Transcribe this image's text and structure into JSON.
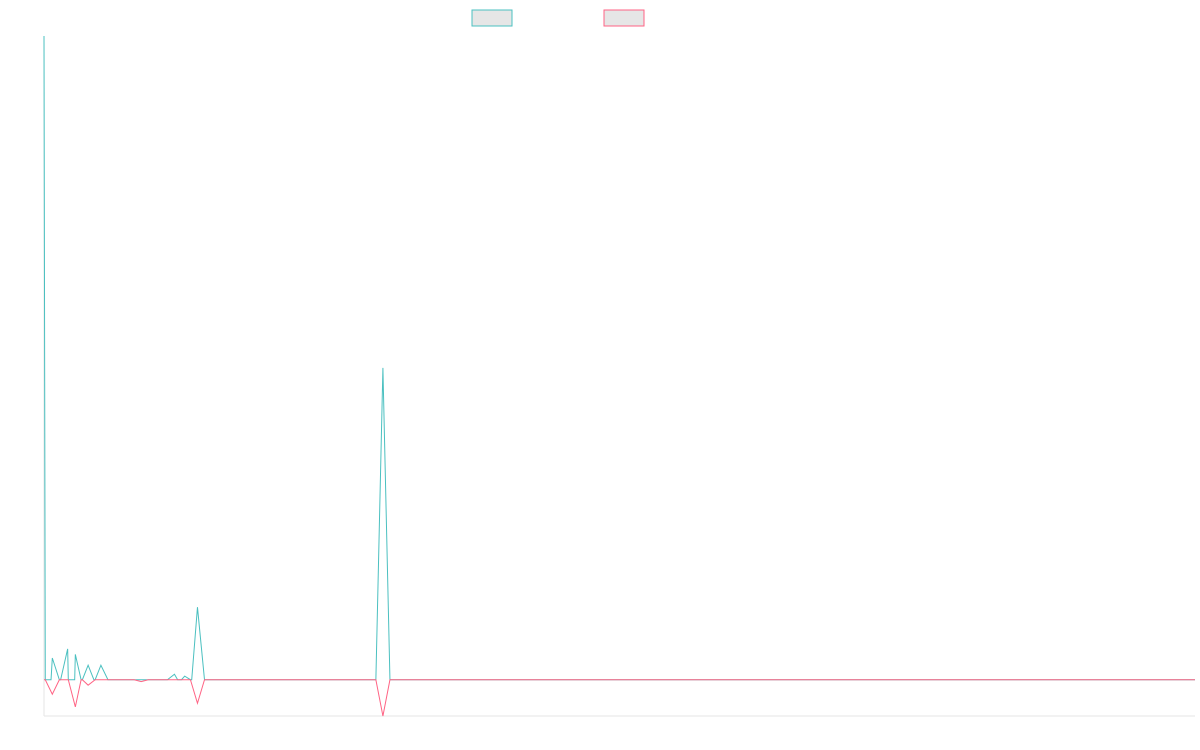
{
  "colors": {
    "series_a": "#4bc0c0",
    "series_b": "#ff6384",
    "legend_fill": "#e6e6e6",
    "axis": "#e6e6e6"
  },
  "chart_data": {
    "type": "line",
    "title": "",
    "xlabel": "",
    "ylabel": "",
    "grid": false,
    "legend": "top-center",
    "x_count": 90,
    "ylim": [
      -20,
      355
    ],
    "series": [
      {
        "color": "#4bc0c0",
        "points": [
          [
            0,
            355
          ],
          [
            0.65,
            12
          ],
          [
            1.85,
            17
          ],
          [
            2.45,
            14
          ],
          [
            3.45,
            8
          ],
          [
            4.45,
            8
          ],
          [
            10.2,
            3
          ],
          [
            11,
            2
          ],
          [
            12,
            40
          ],
          [
            26.5,
            172
          ]
        ]
      },
      {
        "color": "#ff6384",
        "points": [
          [
            0.65,
            -8
          ],
          [
            2.45,
            -15
          ],
          [
            3.45,
            -3
          ],
          [
            7.6,
            -1
          ],
          [
            12,
            -13
          ],
          [
            26.5,
            -20
          ]
        ]
      }
    ]
  }
}
